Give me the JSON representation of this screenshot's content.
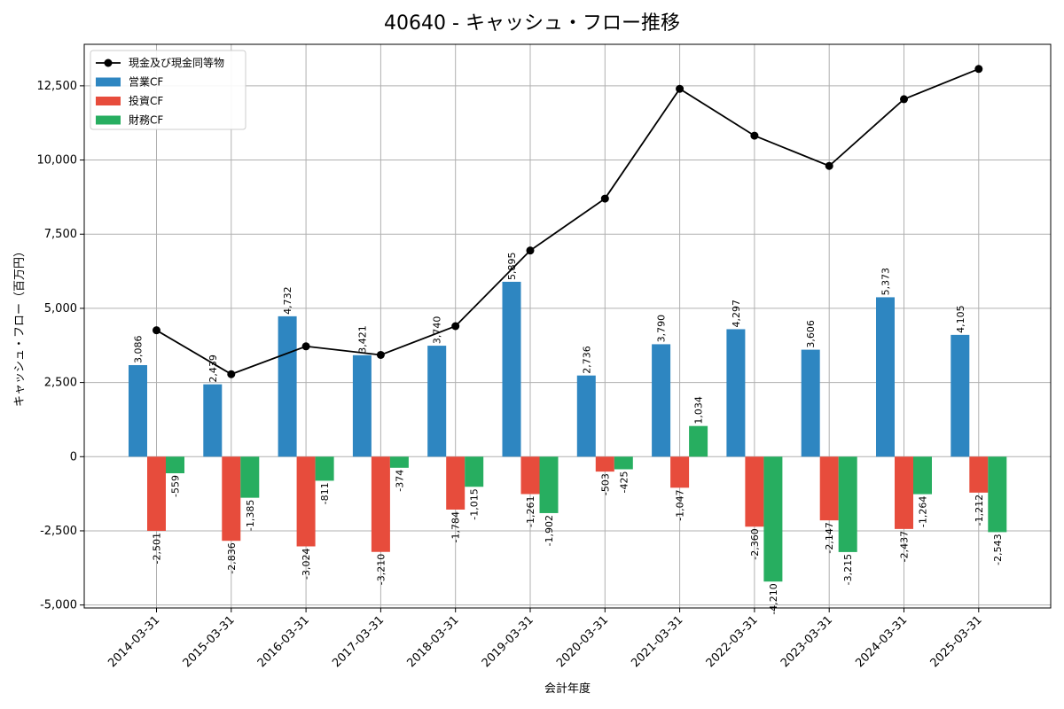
{
  "chart_data": {
    "type": "bar",
    "title": "40640 - キャッシュ・フロー推移",
    "xlabel": "会計年度",
    "ylabel": "キャッシュ・フロー（百万円）",
    "ylim": [
      -5100,
      13900
    ],
    "yticks": [
      -5000,
      -2500,
      0,
      2500,
      5000,
      7500,
      10000,
      12500
    ],
    "ytick_labels": [
      "-5,000",
      "-2,500",
      "0",
      "2,500",
      "5,000",
      "7,500",
      "10,000",
      "12,500"
    ],
    "grid": true,
    "legend_position": "top-left",
    "categories": [
      "2014-03-31",
      "2015-03-31",
      "2016-03-31",
      "2017-03-31",
      "2018-03-31",
      "2019-03-31",
      "2020-03-31",
      "2021-03-31",
      "2022-03-31",
      "2023-03-31",
      "2024-03-31",
      "2025-03-31"
    ],
    "series": [
      {
        "name": "営業CF",
        "kind": "bar",
        "color": "#2e86c1",
        "values": [
          3086,
          2439,
          4732,
          3421,
          3740,
          5895,
          2736,
          3790,
          4297,
          3606,
          5373,
          4105
        ],
        "labels": [
          "3,086",
          "2,439",
          "4,732",
          "3,421",
          "3,740",
          "5,895",
          "2,736",
          "3,790",
          "4,297",
          "3,606",
          "5,373",
          "4,105"
        ]
      },
      {
        "name": "投資CF",
        "kind": "bar",
        "color": "#e74c3c",
        "values": [
          -2501,
          -2836,
          -3024,
          -3210,
          -1784,
          -1261,
          -503,
          -1047,
          -2360,
          -2147,
          -2437,
          -1212
        ],
        "labels": [
          "-2,501",
          "-2,836",
          "-3,024",
          "-3,210",
          "-1,784",
          "-1,261",
          "-503",
          "-1,047",
          "-2,360",
          "-2,147",
          "-2,437",
          "-1,212"
        ]
      },
      {
        "name": "財務CF",
        "kind": "bar",
        "color": "#27ae60",
        "values": [
          -559,
          -1385,
          -811,
          -374,
          -1015,
          -1902,
          -425,
          1034,
          -4210,
          -3215,
          -1264,
          -2543
        ],
        "labels": [
          "-559",
          "-1,385",
          "-811",
          "-374",
          "-1,015",
          "-1,902",
          "-425",
          "1,034",
          "-4,210",
          "-3,215",
          "-1,264",
          "-2,543"
        ]
      },
      {
        "name": "現金及び現金同等物",
        "kind": "line",
        "color": "#000000",
        "values": [
          4260,
          2780,
          3720,
          3430,
          4400,
          6950,
          8700,
          12400,
          10820,
          9800,
          12050,
          13070
        ]
      }
    ]
  }
}
